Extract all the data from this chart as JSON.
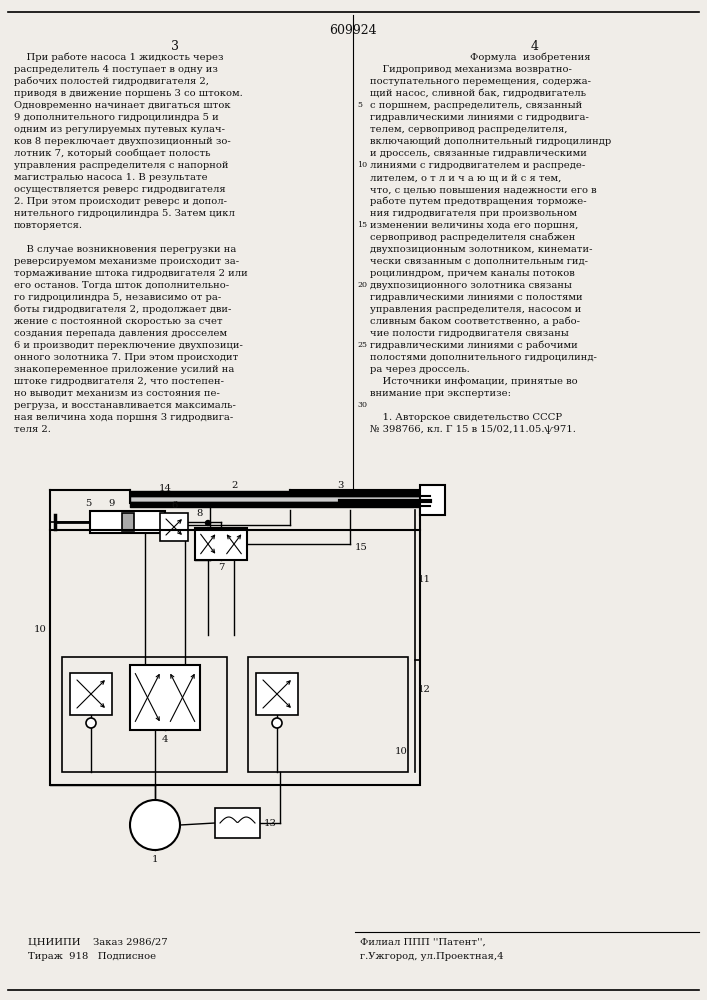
{
  "background_color": "#f0ede8",
  "text_color": "#111111",
  "page_number": "609924",
  "col_left": "3",
  "col_right": "4",
  "font_body": 7.2,
  "font_header": 8.5,
  "left_col_lines": [
    "    При работе насоса 1 жидкость через",
    "распределитель 4 поступает в одну из",
    "рабочих полостей гидродвигателя 2,",
    "приводя в движение поршень 3 со штоком.",
    "Одновременно начинает двигаться шток",
    "9 дополнительного гидроцилиндра 5 и",
    "одним из регулируемых путевых кулач-",
    "ков 8 переключает двухпозиционный зо-",
    "лотник 7, который сообщает полость",
    "управления распределителя с напорной",
    "магистралью насоса 1. В результате",
    "осуществляется реверс гидродвигателя",
    "2. При этом происходит реверс и допол-",
    "нительного гидроцилиндра 5. Затем цикл",
    "повторяется.",
    "",
    "    В случае возникновения перегрузки на",
    "реверсируемом механизме происходит за-",
    "тормаживание штока гидродвигателя 2 или",
    "его останов. Тогда шток дополнительно-",
    "го гидроцилиндра 5, независимо от ра-",
    "боты гидродвигателя 2, продолжает дви-",
    "жение с постоянной скоростью за счет",
    "создания перепада давления дросселем",
    "6 и производит переключение двухпозици-",
    "онного золотника 7. При этом происходит",
    "знакопеременное приложение усилий на",
    "штоке гидродвигателя 2, что постепен-",
    "но выводит механизм из состояния пе-",
    "регруза, и восстанавливается максималь-",
    "ная величина хода поршня 3 гидродвига-",
    "теля 2."
  ],
  "right_col_title": "Формула  изобретения",
  "right_col_lines": [
    "    Гидропривод механизма возвратно-",
    "поступательного перемещения, содержа-",
    "щий насос, сливной бак, гидродвигатель",
    "с поршнем, распределитель, связанный",
    "гидравлическими линиями с гидродвига-",
    "телем, сервопривод распределителя,",
    "включающий дополнительный гидроцилиндр",
    "и дроссель, связанные гидравлическими",
    "линиями с гидродвигателем и распреде-",
    "лителем, о т л и ч а ю щ и й с я тем,",
    "что, с целью повышения надежности его в",
    "работе путем предотвращения торможе-",
    "ния гидродвигателя при произвольном",
    "изменении величины хода его поршня,",
    "сервопривод распределителя снабжен",
    "двухпозиционным золотником, кинемати-",
    "чески связанным с дополнительным гид-",
    "роцилиндром, причем каналы потоков",
    "двухпозиционного золотника связаны",
    "гидравлическими линиями с полостями",
    "управления распределителя, насосом и",
    "сливным баком соответственно, а рабо-",
    "чие полости гидродвигателя связаны",
    "гидравлическими линиями с рабочими",
    "полостями дополнительного гидроцилинд-",
    "ра через дроссель.",
    "    Источники инфомации, принятые во",
    "внимание при экспертизе:",
    "",
    "    1. Авторское свидетельство СССР",
    "№ 398766, кл. Г 15 в 15/02,11.05.ѱ971."
  ],
  "line_numbers": [
    "5",
    "10",
    "15",
    "20",
    "25",
    "30"
  ],
  "footer_left1": "ЦНИИПИ    Заказ 2986/27",
  "footer_left2": "Тираж  918   Подписное",
  "footer_right1": "Филиал ППП ''Патент'',",
  "footer_right2": "г.Ужгород, ул.Проектная,4"
}
